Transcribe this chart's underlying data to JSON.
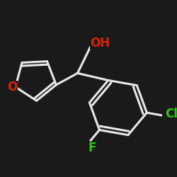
{
  "background_color": "#1a1a1a",
  "bond_color": "#e8e8e8",
  "bond_width": 2.2,
  "atom_colors": {
    "O_furan": "#dd2200",
    "O_OH": "#dd2200",
    "Cl": "#22cc00",
    "F": "#22cc00"
  },
  "figsize": [
    2.5,
    2.5
  ],
  "dpi": 100
}
